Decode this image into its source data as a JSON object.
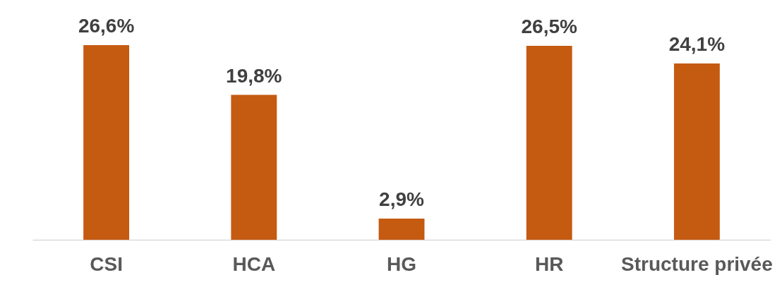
{
  "chart_data": {
    "type": "bar",
    "categories": [
      "CSI",
      "HCA",
      "HG",
      "HR",
      "Structure privée"
    ],
    "values": [
      26.6,
      19.8,
      2.9,
      26.5,
      24.1
    ],
    "value_labels": [
      "26,6%",
      "19,8%",
      "2,9%",
      "26,5%",
      "24,1%"
    ],
    "color": "#c55a11",
    "tick_labels": "x"
  }
}
